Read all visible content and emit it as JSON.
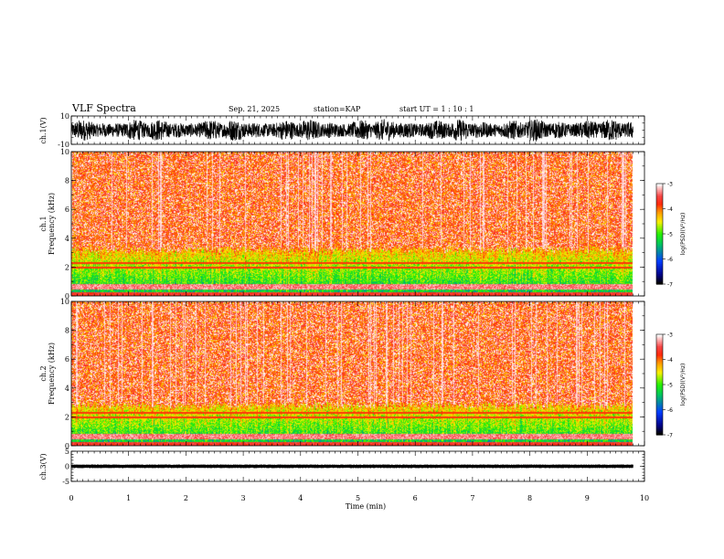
{
  "header": {
    "title": "VLF Spectra",
    "date": "Sep. 21, 2025",
    "station": "station=KAP",
    "start": "start  UT =   1 : 10 : 1"
  },
  "chart_data": [
    {
      "id": "ch1_waveform",
      "type": "line",
      "ylabel": "ch.1(V)",
      "ylim": [
        -10,
        10
      ],
      "yticks": [
        {
          "v": 10,
          "label": "10"
        },
        {
          "v": -10,
          "label": "-10"
        }
      ],
      "xlim": [
        0,
        10
      ],
      "trace_amplitude_range": [
        -8,
        8
      ],
      "data_end_min": 9.8
    },
    {
      "id": "ch1_spectrogram",
      "type": "heatmap",
      "ylabel": "ch.1 Frequency (kHz)",
      "ylabel_lines": [
        "ch.1",
        "Frequency  (kHz)"
      ],
      "ylim": [
        0,
        10
      ],
      "yticks": [
        0,
        2,
        4,
        6,
        8,
        10
      ],
      "xlim": [
        0,
        10
      ],
      "band_top_khz": 3.2,
      "data_end_min": 9.8,
      "colorbar": {
        "label": "log(PSD)(V²/Hz)",
        "range": [
          -7,
          -3
        ],
        "ticks": [
          {
            "v": -3,
            "label": "-3"
          },
          {
            "v": -4,
            "label": "-4"
          },
          {
            "v": -5,
            "label": "-5"
          },
          {
            "v": -6,
            "label": "-6"
          },
          {
            "v": -7,
            "label": "-7"
          }
        ]
      }
    },
    {
      "id": "ch2_spectrogram",
      "type": "heatmap",
      "ylabel": "ch.2 Frequency (kHz)",
      "ylabel_lines": [
        "ch.2",
        "Frequency  (kHz)"
      ],
      "ylim": [
        0,
        10
      ],
      "yticks": [
        0,
        2,
        4,
        6,
        8,
        10
      ],
      "xlim": [
        0,
        10
      ],
      "band_top_khz": 2.8,
      "data_end_min": 9.8,
      "colorbar": {
        "label": "log(PSD)(V²/Hz)",
        "range": [
          -7,
          -3
        ],
        "ticks": [
          {
            "v": -3,
            "label": "-3"
          },
          {
            "v": -4,
            "label": "-4"
          },
          {
            "v": -5,
            "label": "-5"
          },
          {
            "v": -6,
            "label": "-6"
          },
          {
            "v": -7,
            "label": "-7"
          }
        ]
      }
    },
    {
      "id": "ch3_waveform",
      "type": "line",
      "ylabel": "ch.3(V)",
      "ylim": [
        -5,
        5
      ],
      "yticks": [
        {
          "v": 5,
          "label": "5"
        },
        {
          "v": 0,
          "label": "0"
        },
        {
          "v": -5,
          "label": "-5"
        }
      ],
      "xlim": [
        0,
        10
      ],
      "trace_level_v": 0,
      "trace_amplitude_range": [
        -0.6,
        0.6
      ],
      "data_end_min": 9.8
    }
  ],
  "xaxis": {
    "label": "Time  (min)",
    "ticks": [
      "0",
      "1",
      "2",
      "3",
      "4",
      "5",
      "6",
      "7",
      "8",
      "9",
      "10"
    ]
  }
}
